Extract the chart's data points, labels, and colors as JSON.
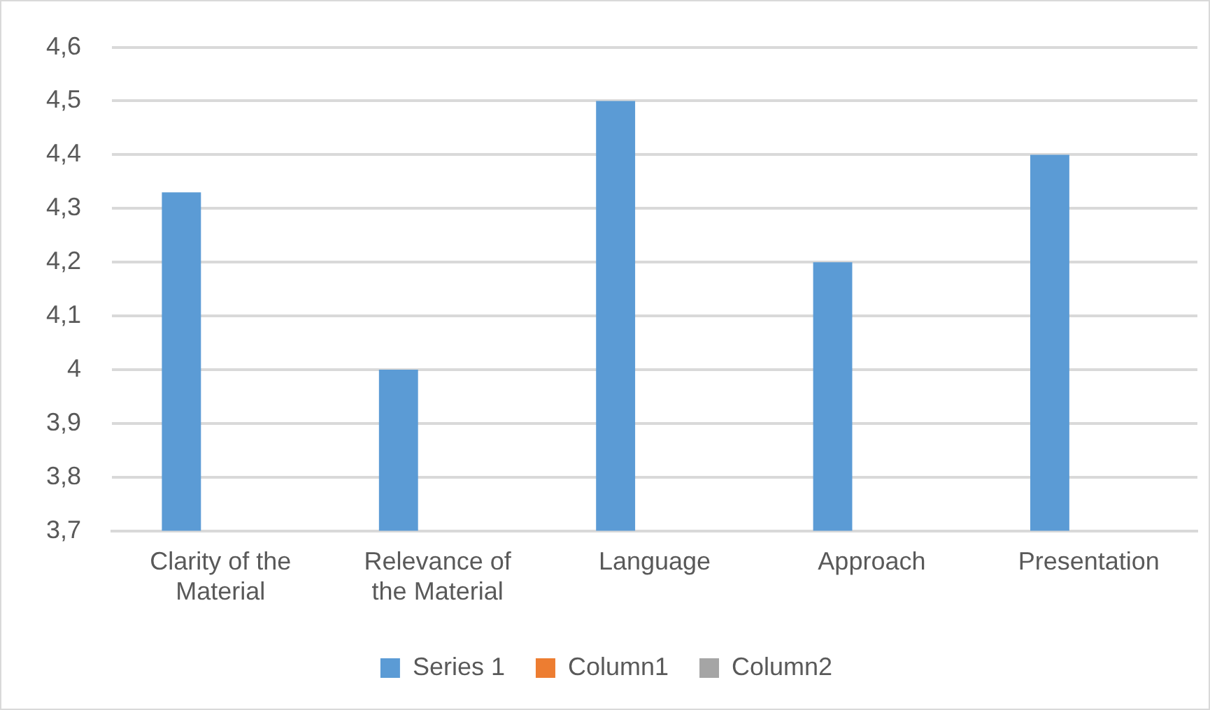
{
  "chart_data": {
    "type": "bar",
    "categories": [
      "Clarity of the Material",
      "Relevance of the Material",
      "Language",
      "Approach",
      "Presentation"
    ],
    "series": [
      {
        "name": "Series 1",
        "color": "#5b9bd5",
        "values": [
          4.33,
          4.0,
          4.5,
          4.2,
          4.4
        ]
      },
      {
        "name": "Column1",
        "color": "#ed7d31",
        "values": [
          null,
          null,
          null,
          null,
          null
        ]
      },
      {
        "name": "Column2",
        "color": "#a5a5a5",
        "values": [
          null,
          null,
          null,
          null,
          null
        ]
      }
    ],
    "ylim": [
      3.7,
      4.6
    ],
    "yticks": [
      {
        "value": 3.7,
        "label": "3,7"
      },
      {
        "value": 3.8,
        "label": "3,8"
      },
      {
        "value": 3.9,
        "label": "3,9"
      },
      4,
      {
        "value": 4.1,
        "label": "4,1"
      },
      {
        "value": 4.2,
        "label": "4,2"
      },
      {
        "value": 4.3,
        "label": "4,3"
      },
      {
        "value": 4.4,
        "label": "4,4"
      },
      {
        "value": 4.5,
        "label": "4,5"
      },
      {
        "value": 4.6,
        "label": "4,6"
      }
    ],
    "grid": "y",
    "legend": "bottom"
  }
}
